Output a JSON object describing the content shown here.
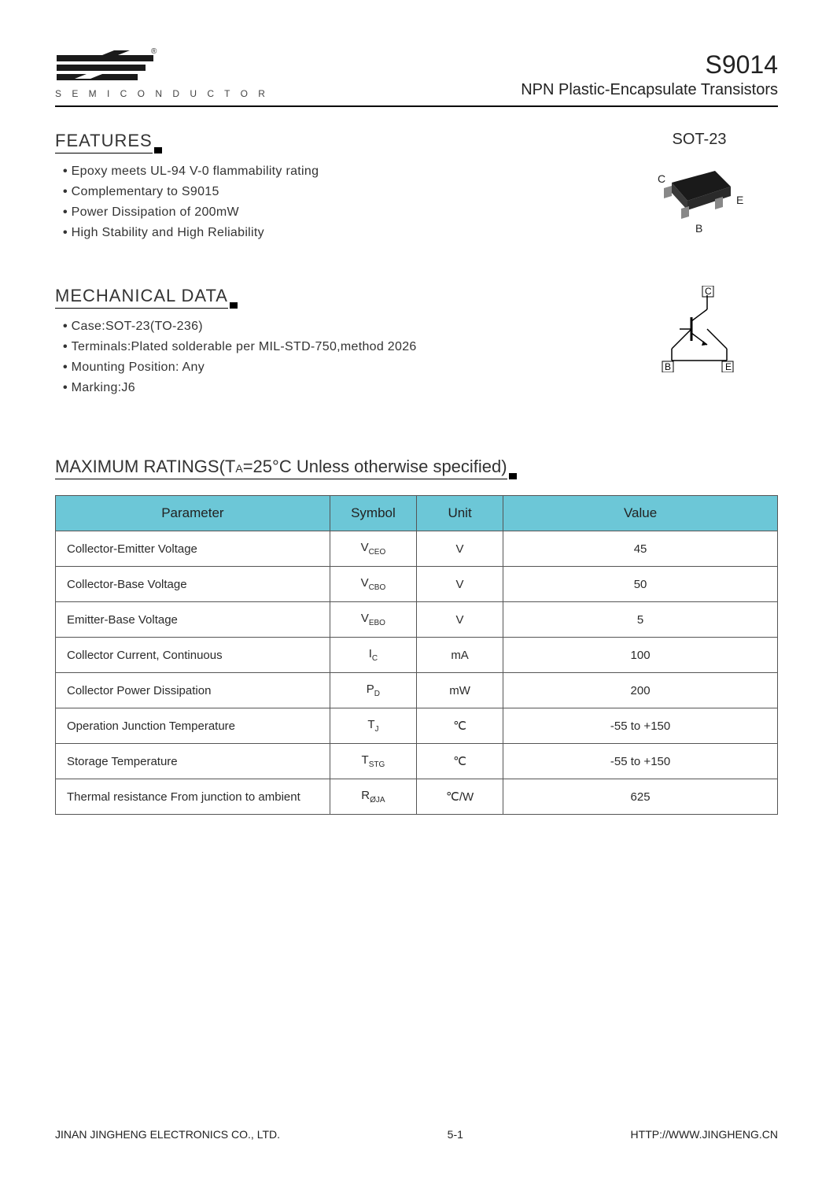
{
  "header": {
    "logo_sub": "S E M I C O N D U C T O R",
    "part_no": "S9014",
    "part_sub": "NPN Plastic-Encapsulate Transistors",
    "reg_mark": "®"
  },
  "features": {
    "title": "FEATURES",
    "items": [
      "Epoxy meets UL-94 V-0 flammability rating",
      "Complementary to S9015",
      "Power Dissipation of 200mW",
      "High Stability and High Reliability"
    ]
  },
  "package": {
    "label": "SOT-23",
    "pins": {
      "c": "C",
      "b": "B",
      "e": "E"
    }
  },
  "mechanical": {
    "title": "MECHANICAL DATA",
    "items": [
      "Case:SOT-23(TO-236)",
      "Terminals:Plated solderable per MIL-STD-750,method 2026",
      "Mounting Position: Any",
      "Marking:J6"
    ]
  },
  "schematic": {
    "c": "C",
    "b": "B",
    "e": "E"
  },
  "ratings": {
    "title_pre": "MAXIMUM RATINGS(T",
    "title_sub": "A",
    "title_post": "=25°C  Unless  otherwise  specified)",
    "columns": [
      "Parameter",
      "Symbol",
      "Unit",
      "Value"
    ],
    "col_widths": [
      "38%",
      "12%",
      "12%",
      "38%"
    ],
    "header_bg": "#6cc7d7",
    "border_color": "#555555",
    "rows": [
      {
        "param": "Collector-Emitter Voltage",
        "sym_main": "V",
        "sym_sub": "CEO",
        "unit": "V",
        "value": "45"
      },
      {
        "param": "Collector-Base Voltage",
        "sym_main": "V",
        "sym_sub": "CBO",
        "unit": "V",
        "value": "50"
      },
      {
        "param": "Emitter-Base Voltage",
        "sym_main": "V",
        "sym_sub": "EBO",
        "unit": "V",
        "value": "5"
      },
      {
        "param": "Collector Current, Continuous",
        "sym_main": "I",
        "sym_sub": "C",
        "unit": "mA",
        "value": "100"
      },
      {
        "param": "Collector Power Dissipation",
        "sym_main": "P",
        "sym_sub": "D",
        "unit": "mW",
        "value": "200"
      },
      {
        "param": "Operation Junction Temperature",
        "sym_main": "T",
        "sym_sub": "J",
        "unit": "℃",
        "value": "-55 to +150"
      },
      {
        "param": "Storage Temperature",
        "sym_main": "T",
        "sym_sub": "STG",
        "unit": "℃",
        "value": "-55 to +150"
      },
      {
        "param": "Thermal resistance From junction to ambient",
        "sym_main": "R",
        "sym_sub": "ØJA",
        "unit": "℃/W",
        "value": "625"
      }
    ]
  },
  "footer": {
    "left": "JINAN JINGHENG ELECTRONICS CO., LTD.",
    "center": "5-1",
    "right": "HTTP://WWW.JINGHENG.CN"
  }
}
